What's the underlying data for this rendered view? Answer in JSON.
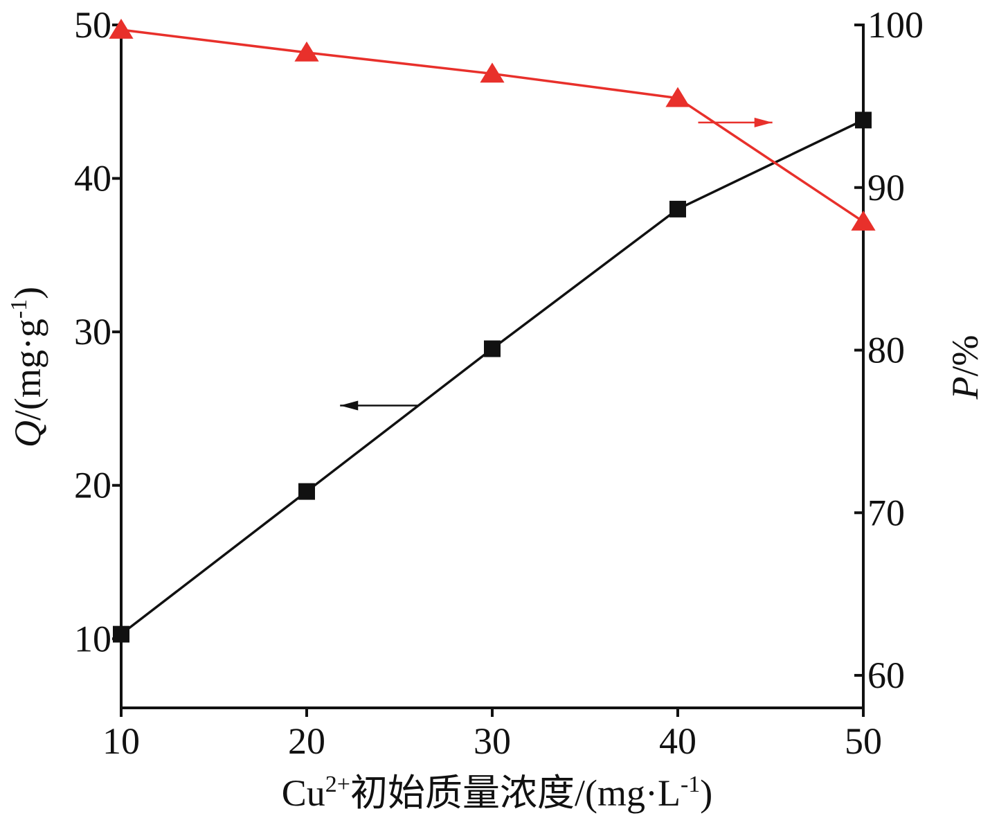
{
  "chart_data": {
    "type": "line",
    "x": [
      10,
      20,
      30,
      40,
      50
    ],
    "xlim": [
      10,
      50
    ],
    "xticks": [
      "10",
      "20",
      "30",
      "40",
      "50"
    ],
    "xlabel": {
      "base": "Cu",
      "sup": "2+",
      "rest": "初始质量浓度/(mg·L",
      "sup2": "-1",
      "end": ")"
    },
    "y_left": {
      "label": {
        "var": "Q",
        "rest": "/(mg·g",
        "sup": "-1",
        "end": ")"
      },
      "ylim": [
        5.5,
        50
      ],
      "ticks": [
        "10",
        "20",
        "30",
        "40",
        "50"
      ]
    },
    "y_right": {
      "label": {
        "var": "P",
        "rest": "/%"
      },
      "ylim": [
        58,
        100
      ],
      "ticks": [
        "60",
        "70",
        "80",
        "90",
        "100"
      ]
    },
    "series": [
      {
        "axis": "left",
        "marker": "square",
        "color": "#111111",
        "values": [
          10.3,
          19.6,
          28.9,
          38.0,
          43.8
        ]
      },
      {
        "axis": "right",
        "marker": "triangle",
        "color": "#e8302b",
        "values": [
          99.7,
          98.3,
          97.0,
          95.5,
          87.9
        ]
      }
    ],
    "annotations": [
      {
        "type": "arrow",
        "direction": "left",
        "color": "#111111",
        "x_from": 26.0,
        "x_to": 21.8,
        "y": 25.2,
        "axis": "left"
      },
      {
        "type": "arrow",
        "direction": "right",
        "color": "#e8302b",
        "x_from": 41.1,
        "x_to": 45.1,
        "y": 94.0,
        "axis": "right"
      }
    ]
  }
}
